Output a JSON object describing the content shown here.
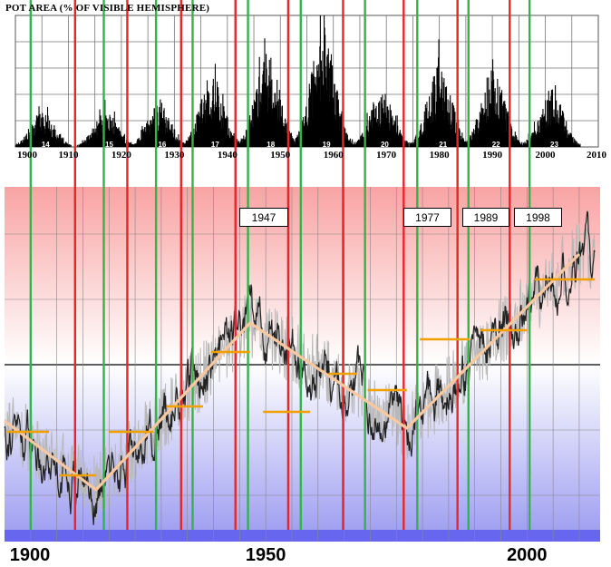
{
  "chart_data": [
    {
      "type": "bar",
      "title": "SUNSPOT AREA (% OF VISIBLE HEMISPHERE)",
      "visible_title": "POT AREA (% OF VISIBLE HEMISPHERE)",
      "xlim": [
        1900,
        2010
      ],
      "x_ticks": [
        "1900",
        "1910",
        "1920",
        "1930",
        "1940",
        "1950",
        "1960",
        "1970",
        "1980",
        "1990",
        "2000",
        "2010"
      ],
      "grid": true,
      "cycles": [
        {
          "label": "14",
          "year": 1905,
          "peak": 0.27
        },
        {
          "label": "15",
          "year": 1917,
          "peak": 0.27
        },
        {
          "label": "16",
          "year": 1927,
          "peak": 0.33
        },
        {
          "label": "17",
          "year": 1937,
          "peak": 0.55
        },
        {
          "label": "18",
          "year": 1947.5,
          "peak": 0.72
        },
        {
          "label": "19",
          "year": 1958,
          "peak": 0.95
        },
        {
          "label": "20",
          "year": 1969,
          "peak": 0.43
        },
        {
          "label": "21",
          "year": 1980,
          "peak": 0.62
        },
        {
          "label": "22",
          "year": 1990,
          "peak": 0.6
        },
        {
          "label": "23",
          "year": 2001,
          "peak": 0.45
        }
      ]
    },
    {
      "type": "line",
      "xlim": [
        1900,
        2014
      ],
      "x_ticks": [
        "1900",
        "1950",
        "2000"
      ],
      "grid": true,
      "annotations": [
        "1947",
        "1977",
        "1989",
        "1998"
      ],
      "trend_line": {
        "x": [
          1900,
          1917.5,
          1947,
          1977,
          2010
        ],
        "y": [
          -0.31,
          -0.69,
          0.23,
          -0.35,
          0.61
        ]
      },
      "cycle_means": [
        {
          "x": [
            1900.5,
            1908.5
          ],
          "y": -0.37
        },
        {
          "x": [
            1910.5,
            1917.5
          ],
          "y": -0.61
        },
        {
          "x": [
            1920,
            1928.5
          ],
          "y": -0.37
        },
        {
          "x": [
            1931,
            1938
          ],
          "y": -0.23
        },
        {
          "x": [
            1939.5,
            1947
          ],
          "y": 0.07
        },
        {
          "x": [
            1949.5,
            1958.5
          ],
          "y": -0.26
        },
        {
          "x": [
            1962,
            1967.5
          ],
          "y": -0.05
        },
        {
          "x": [
            1969.5,
            1977
          ],
          "y": -0.14
        },
        {
          "x": [
            1979.5,
            1989
          ],
          "y": 0.14
        },
        {
          "x": [
            1991,
            2000
          ],
          "y": 0.19
        },
        {
          "x": [
            2001.5,
            2013
          ],
          "y": 0.47
        }
      ]
    }
  ],
  "colors": {
    "minimum_line": "#e8262a",
    "maximum_line": "#34b34a",
    "trend_line": "#f8c8a0",
    "cycle_mean": "#f0a000",
    "warm_band": "#f9a3a3",
    "cool_band": "#9a9af0",
    "bottom_band": "#6666ee"
  },
  "minimum_years": [
    1913.5,
    1923.5,
    1933.8,
    1944.2,
    1954.3,
    1964.8,
    1976.4,
    1986.7,
    1996.7
  ],
  "maximum_years": [
    1905,
    1919,
    1929,
    1936,
    1946.6,
    1956.7,
    1969,
    1979,
    1988.8,
    2000.5
  ]
}
